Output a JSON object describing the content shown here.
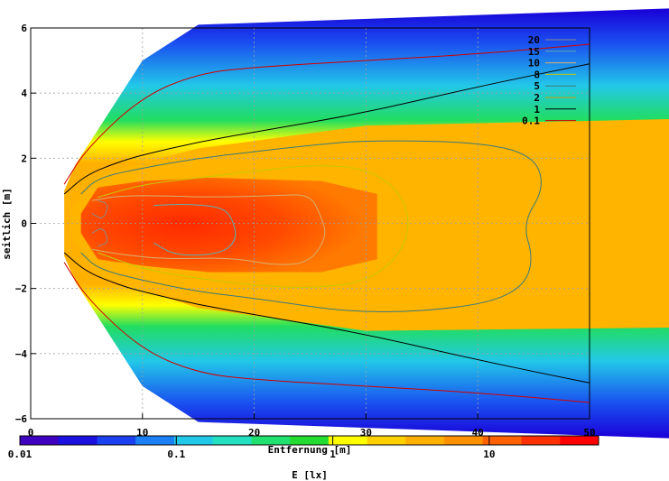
{
  "chart_data": {
    "type": "heatmap",
    "subtype": "filled contour of illuminance with isolines",
    "xlabel": "Entfernung [m]",
    "ylabel": "seitlich [m]",
    "colorbar_label": "E [lx]",
    "xlim": [
      0,
      50
    ],
    "ylim": [
      -6,
      6
    ],
    "x_ticks": [
      "0",
      "10",
      "20",
      "30",
      "40",
      "50"
    ],
    "y_ticks": [
      "6",
      "4",
      "2",
      "0",
      "−2",
      "−4",
      "−6"
    ],
    "colorbar_scale": "log",
    "colorbar_range": [
      0.01,
      50
    ],
    "colorbar_ticks": [
      "0.01",
      "0.1",
      "1",
      "10"
    ],
    "grid": true,
    "legend_position": "top-right",
    "contour_levels": [
      {
        "label": "20",
        "value": 20,
        "color": "#8a8a8a"
      },
      {
        "label": "15",
        "value": 15,
        "color": "#5bb0b0"
      },
      {
        "label": "10",
        "value": 10,
        "color": "#d8b070"
      },
      {
        "label": "8",
        "value": 8,
        "color": "#c8c800"
      },
      {
        "label": "5",
        "value": 5,
        "color": "#3a7a7a"
      },
      {
        "label": "2",
        "value": 2,
        "color": "#c8a000"
      },
      {
        "label": "1",
        "value": 1,
        "color": "#000000"
      },
      {
        "label": "0.1",
        "value": 0.1,
        "color": "#d00000"
      }
    ],
    "contours": [
      {
        "level": 0.1,
        "points": [
          [
            3,
            1.2
          ],
          [
            5,
            2.3
          ],
          [
            10,
            3.9
          ],
          [
            15,
            4.6
          ],
          [
            20,
            4.8
          ],
          [
            30,
            5.0
          ],
          [
            40,
            5.2
          ],
          [
            50,
            5.5
          ]
        ]
      },
      {
        "level": 1,
        "points": [
          [
            3,
            0.9
          ],
          [
            5,
            1.5
          ],
          [
            8,
            1.9
          ],
          [
            10,
            2.1
          ],
          [
            15,
            2.5
          ],
          [
            20,
            2.8
          ],
          [
            30,
            3.4
          ],
          [
            40,
            4.2
          ],
          [
            50,
            4.9
          ]
        ]
      },
      {
        "level": 5,
        "points": [
          [
            4.5,
            0.9
          ],
          [
            6,
            1.4
          ],
          [
            10,
            1.7
          ],
          [
            15,
            2.0
          ],
          [
            20,
            2.2
          ],
          [
            25,
            2.4
          ],
          [
            30,
            2.55
          ],
          [
            40,
            2.5
          ],
          [
            45,
            2.1
          ],
          [
            46,
            1.1
          ],
          [
            44,
            0
          ],
          [
            45,
            -1.1
          ],
          [
            44,
            -2.0
          ],
          [
            40,
            -2.55
          ],
          [
            30,
            -2.8
          ],
          [
            20,
            -2.3
          ],
          [
            15,
            -2.1
          ],
          [
            10,
            -1.75
          ],
          [
            6,
            -1.4
          ],
          [
            4.5,
            -0.9
          ]
        ]
      },
      {
        "level": 8,
        "points": [
          [
            6,
            0.8
          ],
          [
            10,
            1.2
          ],
          [
            15,
            1.4
          ],
          [
            20,
            1.6
          ],
          [
            25,
            1.8
          ],
          [
            30,
            1.7
          ],
          [
            33,
            1.0
          ],
          [
            34,
            0
          ],
          [
            33,
            -1.0
          ],
          [
            30,
            -1.8
          ],
          [
            25,
            -2.0
          ],
          [
            20,
            -1.9
          ],
          [
            15,
            -1.7
          ],
          [
            10,
            -1.4
          ],
          [
            6,
            -0.9
          ]
        ]
      },
      {
        "level": 10,
        "points": [
          [
            5.5,
            0.7
          ],
          [
            8,
            0.85
          ],
          [
            12,
            0.85
          ],
          [
            16,
            0.8
          ],
          [
            22,
            0.85
          ],
          [
            25,
            0.9
          ],
          [
            26,
            0.2
          ],
          [
            26.5,
            -0.4
          ],
          [
            25,
            -1.2
          ],
          [
            22,
            -1.3
          ],
          [
            18,
            -1.05
          ],
          [
            12,
            -1.1
          ],
          [
            8,
            -0.95
          ],
          [
            5.5,
            -0.8
          ]
        ]
      },
      {
        "level": 15,
        "points": [
          [
            11,
            0.55
          ],
          [
            14,
            0.6
          ],
          [
            17,
            0.5
          ],
          [
            18,
            0.2
          ],
          [
            18.5,
            -0.5
          ],
          [
            17,
            -0.95
          ],
          [
            13,
            -1.0
          ],
          [
            11,
            -0.6
          ]
        ]
      },
      {
        "level": 20,
        "points": [
          [
            5.5,
            -0.3
          ],
          [
            6.5,
            -0.1
          ],
          [
            7,
            -0.6
          ],
          [
            6,
            -0.7
          ]
        ]
      }
    ]
  }
}
